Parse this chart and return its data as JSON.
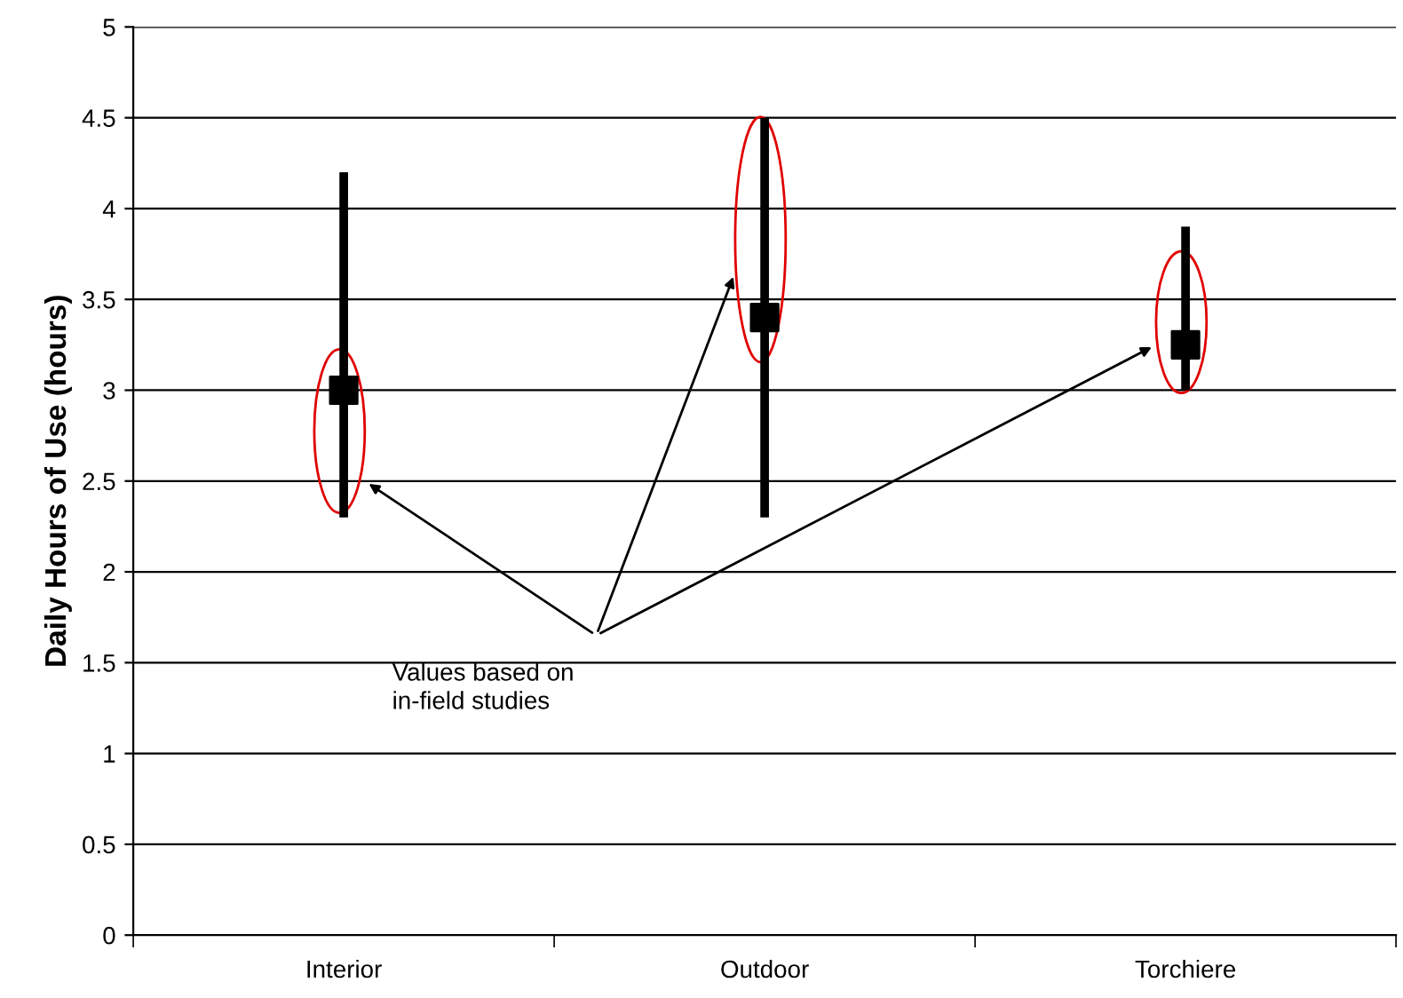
{
  "chart_data": {
    "type": "scatter",
    "ylabel": "Daily Hours of Use (hours)",
    "categories": [
      "Interior",
      "Outdoor",
      "Torchiere"
    ],
    "series": [
      {
        "color": "#000000",
        "values": [
          3.0,
          3.4,
          3.25
        ],
        "errors": [
          [
            2.3,
            4.2
          ],
          [
            2.3,
            4.5
          ],
          [
            3.0,
            3.9
          ]
        ]
      }
    ],
    "marker": "square",
    "grid": "y",
    "legend": false,
    "ylim": [
      0,
      5
    ],
    "yticks": [
      0,
      0.5,
      1,
      1.5,
      2,
      2.5,
      3,
      3.5,
      4,
      4.5,
      5
    ],
    "annotations": [
      "Values based on\nin-field studies"
    ]
  }
}
